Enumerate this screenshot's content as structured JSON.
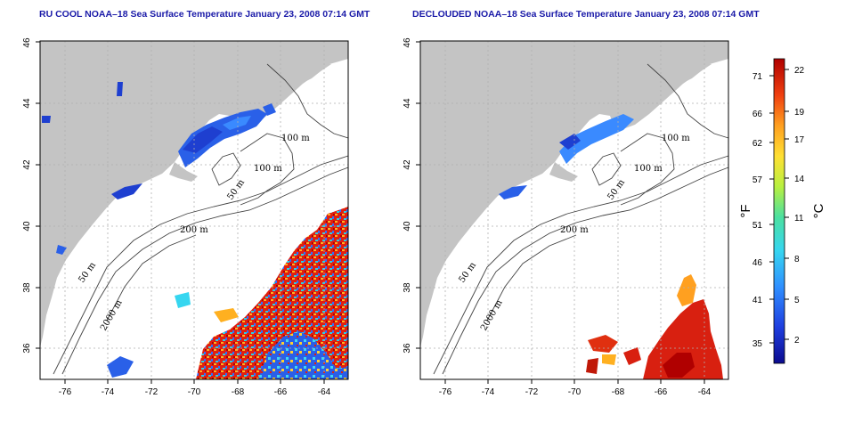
{
  "panels": [
    {
      "title": "RU COOL NOAA–18 Sea Surface Temperature January 23, 2008 07:14 GMT",
      "x_ticks": [
        "-76",
        "-74",
        "-72",
        "-70",
        "-68",
        "-66",
        "-64"
      ],
      "y_ticks": [
        "36",
        "38",
        "40",
        "42",
        "44",
        "46"
      ],
      "contour_labels": [
        "100 m",
        "100 m",
        "50 m",
        "200 m",
        "50 m",
        "2000 m"
      ]
    },
    {
      "title": "DECLOUDED NOAA–18 Sea Surface Temperature January 23, 2008 07:14 GMT",
      "x_ticks": [
        "-76",
        "-74",
        "-72",
        "-70",
        "-68",
        "-66",
        "-64"
      ],
      "y_ticks": [
        "36",
        "38",
        "40",
        "42",
        "44",
        "46"
      ],
      "contour_labels": [
        "100 m",
        "100 m",
        "50 m",
        "200 m",
        "50 m",
        "2000 m"
      ]
    }
  ],
  "colorbar": {
    "fahrenheit_ticks": [
      "71",
      "66",
      "62",
      "57",
      "51",
      "46",
      "41",
      "35"
    ],
    "celsius_ticks": [
      "22",
      "19",
      "17",
      "14",
      "11",
      "8",
      "5",
      "2"
    ],
    "left_unit": "°F",
    "right_unit": "°C",
    "colors": [
      "#0b0b8f",
      "#1f3fe0",
      "#2f8fff",
      "#36d6f0",
      "#4be0a0",
      "#b8f040",
      "#ffe033",
      "#ffa020",
      "#f04010",
      "#b00000"
    ]
  },
  "colors": {
    "land": "#c4c4c4",
    "ocean": "#ffffff",
    "grid": "#b0b0b0",
    "title": "#1a1aa8"
  }
}
